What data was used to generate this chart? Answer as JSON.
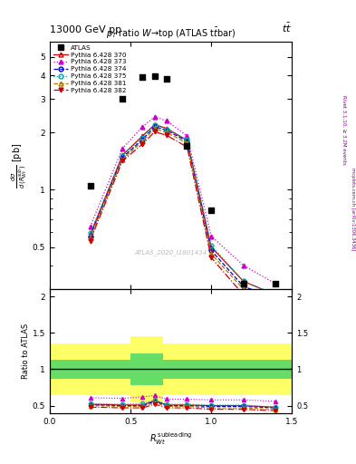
{
  "title_top": "13000 GeV pp",
  "title_top_right": "tt",
  "plot_title": "p$_T$ ratio W→top (ATLAS t$\\bar{t}$bar)",
  "xlabel": "$R_{Wt}^{\\mathrm{subleading}}$",
  "ylabel_ratio": "Ratio to ATLAS",
  "watermark": "ATLAS_2020_I1801434",
  "right_label": "Rivet 3.1.10, ≥ 3.2M events",
  "right_label2": "mcplots.cern.ch [arXiv:1306.3436]",
  "x_centers": [
    0.25,
    0.45,
    0.575,
    0.65,
    0.725,
    0.85,
    1.0,
    1.2,
    1.4
  ],
  "atlas_y": [
    1.05,
    3.0,
    3.9,
    3.95,
    3.85,
    1.7,
    0.78,
    0.32,
    0.32
  ],
  "mc_370_y": [
    0.58,
    1.52,
    1.92,
    2.2,
    2.1,
    1.82,
    0.5,
    0.33,
    0.28
  ],
  "mc_373_y": [
    0.64,
    1.65,
    2.15,
    2.42,
    2.3,
    1.92,
    0.57,
    0.4,
    0.32
  ],
  "mc_374_y": [
    0.57,
    1.48,
    1.84,
    2.15,
    2.05,
    1.8,
    0.48,
    0.31,
    0.27
  ],
  "mc_375_y": [
    0.59,
    1.51,
    1.88,
    2.18,
    2.08,
    1.83,
    0.51,
    0.33,
    0.28
  ],
  "mc_381_y": [
    0.56,
    1.45,
    1.8,
    2.1,
    2.0,
    1.76,
    0.46,
    0.3,
    0.26
  ],
  "mc_382_y": [
    0.54,
    1.42,
    1.74,
    2.02,
    1.93,
    1.68,
    0.44,
    0.28,
    0.24
  ],
  "ratio_370": [
    0.52,
    0.51,
    0.51,
    0.57,
    0.51,
    0.51,
    0.5,
    0.5,
    0.48
  ],
  "ratio_373": [
    0.61,
    0.6,
    0.62,
    0.64,
    0.59,
    0.59,
    0.58,
    0.58,
    0.56
  ],
  "ratio_374": [
    0.51,
    0.5,
    0.5,
    0.56,
    0.5,
    0.5,
    0.49,
    0.49,
    0.47
  ],
  "ratio_375": [
    0.53,
    0.52,
    0.53,
    0.58,
    0.52,
    0.52,
    0.51,
    0.51,
    0.48
  ],
  "ratio_381": [
    0.5,
    0.49,
    0.49,
    0.54,
    0.49,
    0.49,
    0.47,
    0.47,
    0.45
  ],
  "ratio_382": [
    0.48,
    0.47,
    0.47,
    0.52,
    0.47,
    0.47,
    0.45,
    0.45,
    0.43
  ],
  "band_x_edges": [
    0.0,
    0.35,
    0.5,
    0.625,
    0.7,
    0.8,
    0.95,
    1.1,
    1.3,
    1.5
  ],
  "green_lo": [
    0.87,
    0.87,
    0.78,
    0.78,
    0.87,
    0.87,
    0.87,
    0.87,
    0.87
  ],
  "green_hi": [
    1.13,
    1.13,
    1.22,
    1.22,
    1.13,
    1.13,
    1.13,
    1.13,
    1.13
  ],
  "yellow_lo": [
    0.65,
    0.65,
    0.55,
    0.55,
    0.65,
    0.65,
    0.65,
    0.65,
    0.65
  ],
  "yellow_hi": [
    1.35,
    1.35,
    1.45,
    1.45,
    1.35,
    1.35,
    1.35,
    1.35,
    1.35
  ],
  "color_370": "#cc0000",
  "color_373": "#cc00cc",
  "color_374": "#0000cc",
  "color_375": "#00aaaa",
  "color_381": "#aa7700",
  "color_382": "#cc0000",
  "ylim_main_lo": 0.3,
  "ylim_main_hi": 6.0,
  "ylim_ratio_lo": 0.4,
  "ylim_ratio_hi": 2.1,
  "xlim_lo": 0.0,
  "xlim_hi": 1.5
}
